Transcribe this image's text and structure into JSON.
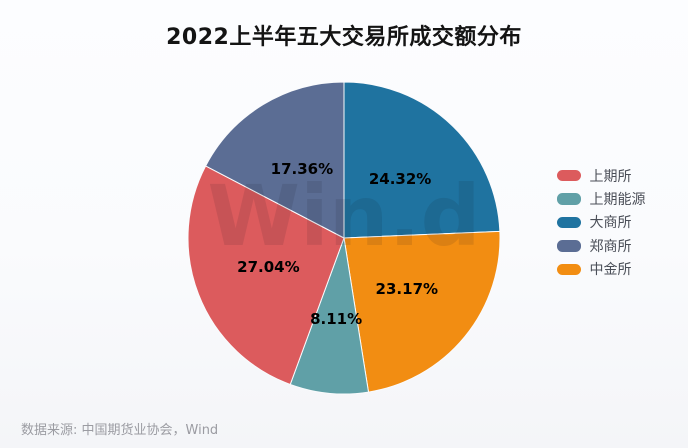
{
  "title": "2022上半年五大交易所成交额分布",
  "watermark": "Win.d",
  "source_note": "数据来源: 中国期货业协会，Wind",
  "colors": {
    "background_top": "#fcfdff",
    "background_bottom": "#f4f5f8",
    "title_text": "#141414",
    "slice_label_text": "#000000",
    "legend_text": "#4b4f58",
    "source_text": "#9b9ca2",
    "slice_stroke": "#fafbfd"
  },
  "chart_data": {
    "type": "pie",
    "title": "2022上半年五大交易所成交额分布",
    "unit": "%",
    "start_angle_deg": -90,
    "direction": "clockwise",
    "label_radius_fraction": 0.52,
    "slices_clockwise_from_top": [
      {
        "name": "大商所",
        "value": 24.32,
        "label": "24.32%",
        "color": "#1F73A0"
      },
      {
        "name": "中金所",
        "value": 23.17,
        "label": "23.17%",
        "color": "#F28D12"
      },
      {
        "name": "上期能源",
        "value": 8.11,
        "label": "8.11%",
        "color": "#60A0A7"
      },
      {
        "name": "上期所",
        "value": 27.04,
        "label": "27.04%",
        "color": "#DC5B5D"
      },
      {
        "name": "郑商所",
        "value": 17.36,
        "label": "17.36%",
        "color": "#5B6D94"
      }
    ],
    "legend": [
      {
        "label": "上期所",
        "color": "#DC5B5D"
      },
      {
        "label": "上期能源",
        "color": "#60A0A7"
      },
      {
        "label": "大商所",
        "color": "#1F73A0"
      },
      {
        "label": "郑商所",
        "color": "#5B6D94"
      },
      {
        "label": "中金所",
        "color": "#F28D12"
      }
    ]
  }
}
